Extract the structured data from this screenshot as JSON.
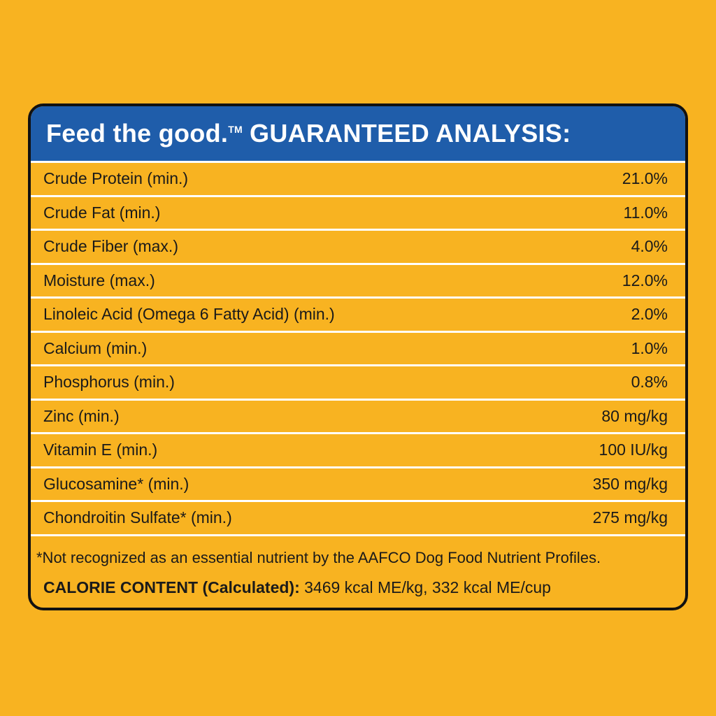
{
  "header": {
    "brand": "Feed the good.",
    "trademark": "TM",
    "title": "GUARANTEED ANALYSIS:"
  },
  "rows": [
    {
      "label": "Crude Protein (min.)",
      "value": "21.0%"
    },
    {
      "label": "Crude Fat (min.)",
      "value": "11.0%"
    },
    {
      "label": "Crude Fiber (max.)",
      "value": "4.0%"
    },
    {
      "label": "Moisture (max.)",
      "value": "12.0%"
    },
    {
      "label": "Linoleic Acid (Omega 6 Fatty Acid) (min.)",
      "value": "2.0%"
    },
    {
      "label": "Calcium (min.)",
      "value": "1.0%"
    },
    {
      "label": "Phosphorus (min.)",
      "value": "0.8%"
    },
    {
      "label": "Zinc (min.)",
      "value": "80 mg/kg"
    },
    {
      "label": "Vitamin E (min.)",
      "value": "100 IU/kg"
    },
    {
      "label": "Glucosamine* (min.)",
      "value": "350 mg/kg"
    },
    {
      "label": "Chondroitin Sulfate* (min.)",
      "value": "275 mg/kg"
    }
  ],
  "footnote": "*Not recognized as an essential nutrient by the AAFCO Dog Food Nutrient Profiles.",
  "calorie": {
    "label": "CALORIE CONTENT (Calculated):",
    "value": "3469 kcal ME/kg, 332 kcal ME/cup"
  },
  "colors": {
    "background": "#F8B321",
    "header": "#1F5DAA",
    "border": "#111111",
    "divider": "#FFFFFF"
  }
}
